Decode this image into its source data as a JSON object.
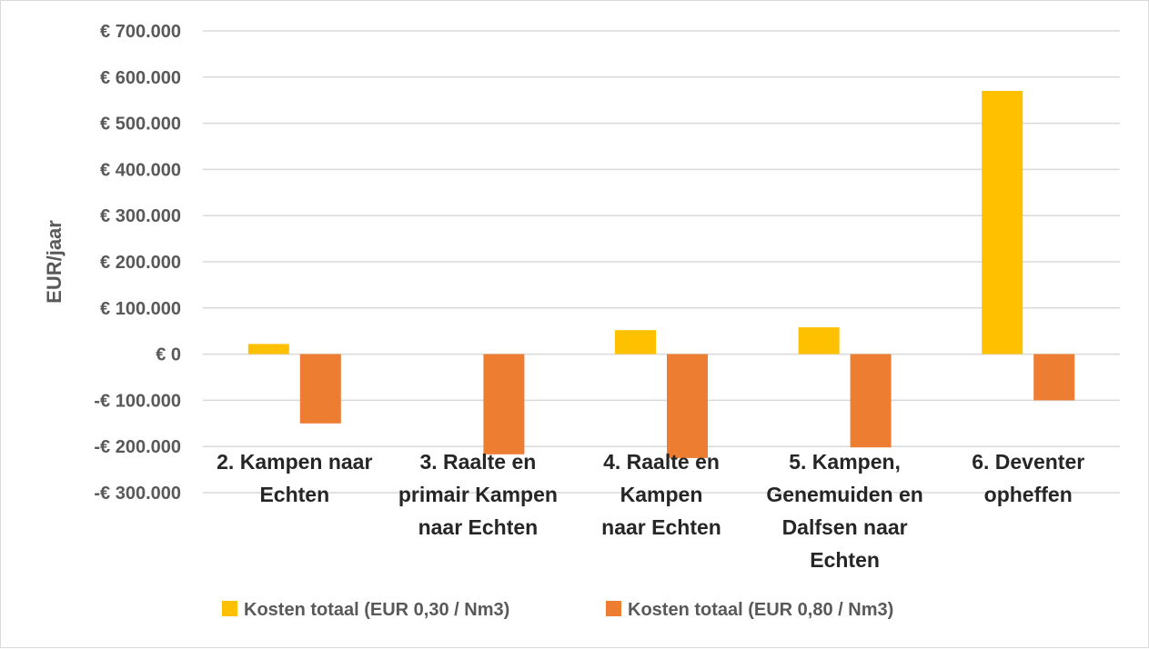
{
  "chart_data": {
    "type": "bar",
    "ylabel": "EUR/jaar",
    "ylim": [
      -300000,
      700000
    ],
    "ytick_values": [
      700000,
      600000,
      500000,
      400000,
      300000,
      200000,
      100000,
      0,
      -100000,
      -200000,
      -300000
    ],
    "ytick_labels": [
      "€ 700.000",
      "€ 600.000",
      "€ 500.000",
      "€ 400.000",
      "€ 300.000",
      "€ 200.000",
      "€ 100.000",
      "€ 0",
      "-€ 100.000",
      "-€ 200.000",
      "-€ 300.000"
    ],
    "grid": true,
    "legend_position": "bottom",
    "categories": [
      [
        "2. Kampen naar",
        "Echten"
      ],
      [
        "3. Raalte en",
        "primair Kampen",
        "naar Echten"
      ],
      [
        "4. Raalte en",
        "Kampen",
        "naar Echten"
      ],
      [
        "5. Kampen,",
        "Genemuiden en",
        "Dalfsen naar",
        "Echten"
      ],
      [
        "6. Deventer",
        "opheffen"
      ]
    ],
    "series": [
      {
        "name": "Kosten totaal (EUR 0,30 / Nm3)",
        "color": "#FFC000",
        "values": [
          22000,
          0,
          52000,
          58000,
          570000
        ]
      },
      {
        "name": "Kosten totaal (EUR 0,80 / Nm3)",
        "color": "#ED7D31",
        "values": [
          -150000,
          -217000,
          -225000,
          -202000,
          -100000
        ]
      }
    ]
  }
}
